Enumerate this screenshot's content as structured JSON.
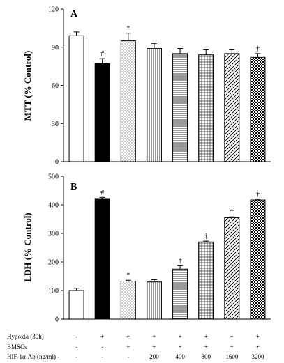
{
  "chart_data": [
    {
      "type": "bar",
      "panel_label": "A",
      "ylabel": "MTT (% Control)",
      "ylim": [
        0,
        120
      ],
      "yticks": [
        0,
        30,
        60,
        90,
        120
      ],
      "grid": false,
      "values": [
        99,
        77,
        95,
        89,
        85,
        84,
        85,
        82
      ],
      "errors": [
        3,
        4,
        6,
        4,
        4,
        4,
        3,
        3
      ],
      "annotations": [
        "",
        "#",
        "*",
        "",
        "",
        "",
        "",
        "†"
      ]
    },
    {
      "type": "bar",
      "panel_label": "B",
      "ylabel": "LDH (% Control)",
      "ylim": [
        0,
        500
      ],
      "yticks": [
        0,
        100,
        200,
        300,
        400,
        500
      ],
      "grid": false,
      "values": [
        100,
        422,
        133,
        130,
        175,
        270,
        355,
        417
      ],
      "errors": [
        8,
        4,
        3,
        8,
        12,
        3,
        3,
        3
      ],
      "annotations": [
        "",
        "#",
        "*",
        "",
        "†",
        "†",
        "†",
        "†"
      ]
    }
  ],
  "conditions": {
    "rows": [
      {
        "label": "Hypoxia (30h)",
        "values": [
          "-",
          "+",
          "+",
          "+",
          "+",
          "+",
          "+",
          "+"
        ]
      },
      {
        "label": "BMSCs",
        "values": [
          "-",
          "-",
          "+",
          "+",
          "+",
          "+",
          "+",
          "+"
        ]
      },
      {
        "label": "HIF-1α-Ab (ng/ml) -",
        "values": [
          "-",
          "-",
          "-",
          "200",
          "400",
          "800",
          "1600",
          "3200"
        ]
      }
    ]
  },
  "bar_styles": [
    "white",
    "black",
    "dots",
    "vertical-lines",
    "horizontal-lines",
    "grid",
    "diagonal-lines",
    "checker"
  ],
  "colors": {
    "axis": "#000000",
    "bar_edge": "#000000",
    "background": "#ffffff"
  }
}
